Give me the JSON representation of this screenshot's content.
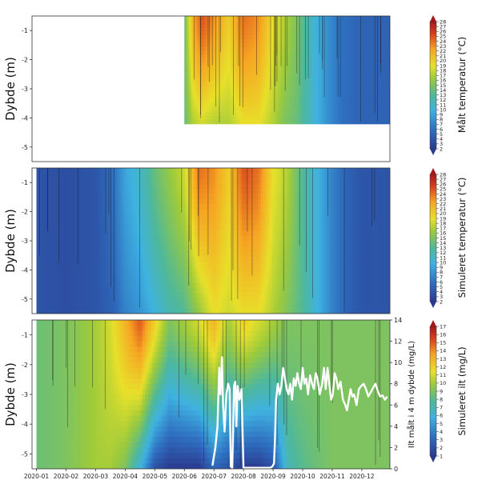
{
  "x_tick_labels": [
    "2020-01",
    "2020-02",
    "2020-03",
    "2020-04",
    "2020-05",
    "2020-06",
    "2020-07",
    "2020-08",
    "2020-09",
    "2020-10",
    "2020-11",
    "2020-12"
  ],
  "panels": [
    {
      "ylabel": "Dybde (m)",
      "colorbar_label": "Målt temperatur (°C)",
      "y_ticks": [
        "-1",
        "-2",
        "-3",
        "-4",
        "-5"
      ],
      "colorbar_ticks": [
        "2",
        "3",
        "4",
        "5",
        "6",
        "7",
        "8",
        "9",
        "10",
        "11",
        "12",
        "13",
        "14",
        "15",
        "16",
        "17",
        "18",
        "19",
        "20",
        "21",
        "22",
        "23",
        "24",
        "25",
        "26",
        "27",
        "28"
      ]
    },
    {
      "ylabel": "Dybde (m)",
      "colorbar_label": "Simuleret temperatur (°C)",
      "y_ticks": [
        "-1",
        "-2",
        "-3",
        "-4",
        "-5"
      ],
      "colorbar_ticks": [
        "2",
        "3",
        "4",
        "5",
        "6",
        "7",
        "8",
        "9",
        "10",
        "11",
        "12",
        "13",
        "14",
        "15",
        "16",
        "17",
        "18",
        "19",
        "20",
        "21",
        "22",
        "23",
        "24",
        "25",
        "26",
        "27",
        "28"
      ]
    },
    {
      "ylabel": "Dybde (m)",
      "colorbar_label": "Simuleret ilt (mg/L)",
      "right_axis_label": "Ilt målt i 4 m dybde (mg/L)",
      "y_ticks": [
        "-1",
        "-2",
        "-3",
        "-4",
        "-5"
      ],
      "right_ticks": [
        "0",
        "2",
        "4",
        "6",
        "8",
        "10",
        "12",
        "14"
      ],
      "colorbar_ticks": [
        "1",
        "2",
        "3",
        "4",
        "5",
        "6",
        "7",
        "8",
        "9",
        "10",
        "11",
        "12",
        "13",
        "14",
        "15",
        "16",
        "17"
      ]
    }
  ],
  "chart_data": [
    {
      "type": "heatmap",
      "title": "",
      "xlabel": "",
      "ylabel": "Dybde (m)",
      "colorbar_label": "Målt temperatur (°C)",
      "colorbar_range": [
        2,
        28
      ],
      "ylim": [
        -5.5,
        -0.5
      ],
      "x_range_months": [
        "2020-01",
        "2020-12"
      ],
      "data_start": "2020-06",
      "data_depth_range": [
        -4.2,
        -0.5
      ],
      "profile": {
        "months": [
          6.0,
          6.3,
          6.6,
          7.0,
          7.5,
          8.0,
          8.5,
          9.0,
          9.4,
          9.8,
          10.3,
          10.8,
          11.3,
          12.0,
          12.9
        ],
        "surface_temp": [
          14,
          22,
          25,
          23,
          20,
          24,
          23,
          19,
          17,
          15,
          11,
          8,
          6,
          5,
          5
        ],
        "bottom_temp": [
          14,
          17,
          18,
          17,
          17,
          19,
          19,
          17,
          15,
          14,
          11,
          8,
          6,
          5,
          5
        ]
      }
    },
    {
      "type": "heatmap",
      "title": "",
      "xlabel": "",
      "ylabel": "Dybde (m)",
      "colorbar_label": "Simuleret temperatur (°C)",
      "colorbar_range": [
        2,
        28
      ],
      "ylim": [
        -5.5,
        -0.5
      ],
      "x_range_months": [
        "2020-01",
        "2020-12"
      ],
      "profile": {
        "months": [
          1.0,
          2.0,
          3.0,
          3.6,
          4.0,
          4.5,
          5.0,
          5.5,
          6.0,
          6.5,
          7.0,
          7.5,
          8.0,
          8.5,
          9.0,
          9.5,
          10.0,
          10.5,
          11.0,
          11.5,
          12.0,
          12.9
        ],
        "surface_temp": [
          4,
          3.5,
          4,
          6,
          9,
          11,
          14,
          16,
          18,
          24,
          23,
          20,
          25,
          24,
          19,
          17,
          13,
          10,
          7,
          5,
          4,
          4
        ],
        "bottom_temp": [
          4,
          3.5,
          4,
          5,
          7,
          8,
          10,
          12,
          13,
          16,
          19,
          18,
          19,
          19,
          17,
          15,
          13,
          10,
          7,
          5,
          4,
          4
        ]
      }
    },
    {
      "type": "heatmap",
      "title": "",
      "xlabel": "",
      "ylabel": "Dybde (m)",
      "colorbar_label": "Simuleret ilt (mg/L)",
      "colorbar_range": [
        1,
        17
      ],
      "ylim": [
        -5.5,
        -0.5
      ],
      "x_range_months": [
        "2020-01",
        "2020-12"
      ],
      "profile": {
        "months": [
          1.0,
          2.0,
          3.0,
          3.5,
          4.0,
          4.5,
          5.0,
          5.5,
          6.0,
          6.5,
          7.0,
          7.5,
          8.0,
          8.5,
          9.0,
          9.5,
          10.0,
          11.0,
          12.0,
          12.9
        ],
        "surface_do": [
          8.5,
          9,
          10,
          11,
          13,
          15,
          12,
          9,
          10,
          11,
          13,
          10,
          12,
          11,
          10,
          9,
          9,
          9,
          9,
          9
        ],
        "bottom_do": [
          8.5,
          9,
          10,
          10,
          9,
          6,
          2,
          1,
          1,
          1,
          3,
          2,
          1,
          1,
          2,
          7,
          8,
          9,
          9,
          9
        ]
      },
      "measured_series": {
        "name": "",
        "axis": "right",
        "ylim": [
          0,
          14
        ],
        "x_months": [
          6.95,
          7.05,
          7.12,
          7.18,
          7.22,
          7.27,
          7.31,
          7.36,
          7.42,
          7.48,
          7.53,
          7.57,
          7.62,
          7.68,
          7.72,
          7.76,
          7.8,
          7.86,
          7.93,
          8.0,
          8.05,
          8.1,
          8.18,
          8.26,
          8.34,
          8.42,
          8.5,
          8.58,
          8.66,
          8.74,
          8.82,
          8.9,
          8.97,
          9.03,
          9.06,
          9.1,
          9.16,
          9.22,
          9.28,
          9.34,
          9.4,
          9.46,
          9.52,
          9.58,
          9.64,
          9.7,
          9.76,
          9.82,
          9.88,
          9.94,
          10.0,
          10.06,
          10.12,
          10.18,
          10.25,
          10.32,
          10.38,
          10.44,
          10.5,
          10.58,
          10.66,
          10.72,
          10.78,
          10.84,
          10.9,
          10.96,
          11.02,
          11.08,
          11.14,
          11.2,
          11.28,
          11.36,
          11.44,
          11.5,
          11.56,
          11.62,
          11.68,
          11.74,
          11.82,
          11.9,
          11.98,
          12.06,
          12.14,
          12.22,
          12.3,
          12.38,
          12.46,
          12.54,
          12.62,
          12.7,
          12.78,
          12.86
        ],
        "values": [
          0.3,
          2.0,
          4.0,
          9.5,
          7.0,
          10.5,
          6.0,
          3.5,
          7.0,
          8.0,
          7.5,
          0.2,
          0.1,
          7.8,
          8.2,
          4.0,
          7.8,
          6.5,
          7.5,
          0.1,
          0.1,
          0.1,
          0.1,
          0.1,
          0.1,
          0.1,
          0.1,
          0.1,
          0.1,
          0.1,
          0.1,
          0.1,
          0.2,
          0.5,
          2.5,
          6.5,
          8.0,
          7.0,
          7.8,
          9.5,
          8.5,
          7.5,
          7.0,
          8.0,
          6.5,
          8.5,
          7.8,
          9.0,
          8.0,
          7.5,
          9.5,
          8.0,
          8.5,
          7.0,
          8.8,
          8.0,
          7.5,
          9.0,
          8.5,
          7.0,
          8.0,
          9.5,
          7.5,
          9.5,
          8.0,
          6.5,
          7.0,
          9.0,
          8.5,
          7.5,
          8.2,
          6.5,
          6.0,
          5.5,
          6.5,
          7.5,
          6.8,
          7.0,
          6.0,
          7.5,
          7.8,
          8.0,
          7.5,
          6.8,
          7.2,
          7.6,
          8.0,
          7.3,
          6.8,
          6.9,
          6.5,
          6.8
        ]
      }
    }
  ]
}
